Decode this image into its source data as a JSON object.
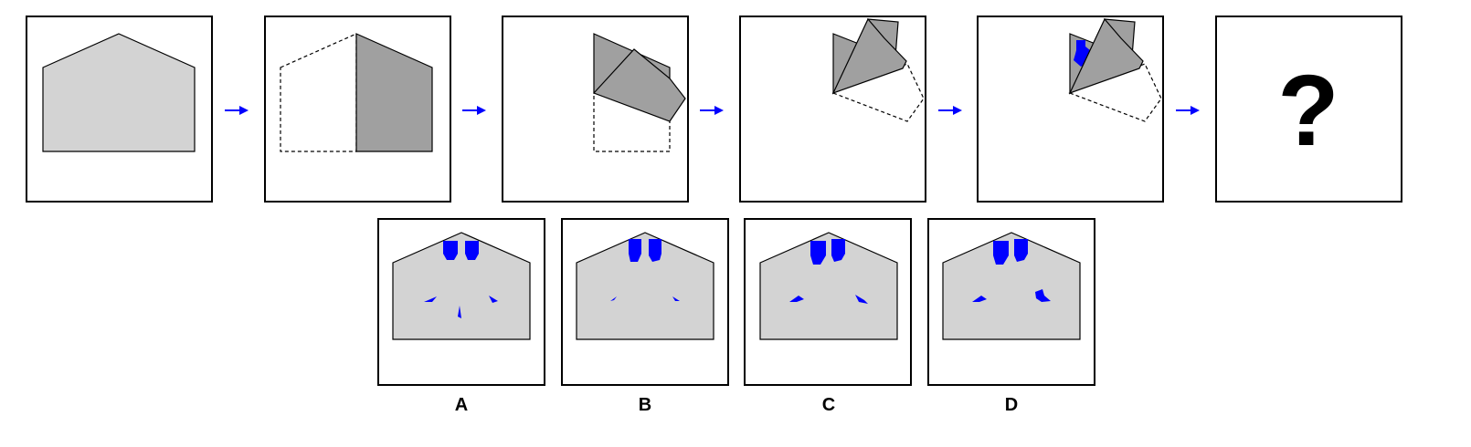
{
  "colors": {
    "paper": "#d3d3d3",
    "folded": "#a0a0a0",
    "hole": "#0000ff",
    "arrow": "#0000ff",
    "outline": "#000000"
  },
  "question": {
    "symbol": "?"
  },
  "options": [
    {
      "label": "A"
    },
    {
      "label": "B"
    },
    {
      "label": "C"
    },
    {
      "label": "D"
    }
  ]
}
